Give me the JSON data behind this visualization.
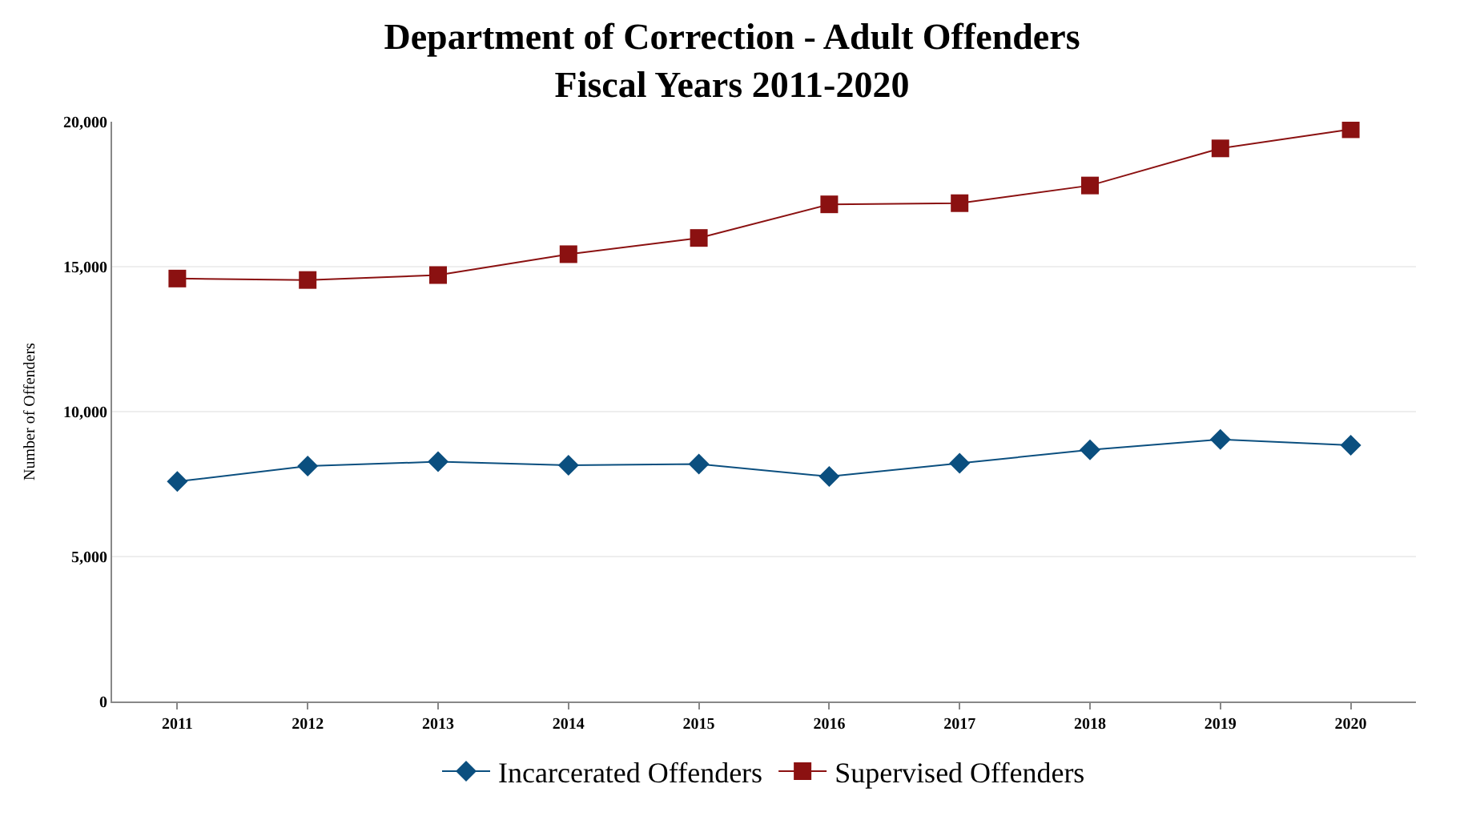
{
  "chart_data": {
    "type": "line",
    "title": "Department of Correction - Adult Offenders\nFiscal Years 2011-2020",
    "ylabel": "Number of Offenders",
    "categories": [
      "2011",
      "2012",
      "2013",
      "2014",
      "2015",
      "2016",
      "2017",
      "2018",
      "2019",
      "2020"
    ],
    "series": [
      {
        "name": "Incarcerated Offenders",
        "color": "#0b4f7f",
        "marker": "diamond",
        "values": [
          7590,
          8120,
          8270,
          8150,
          8190,
          7760,
          8220,
          8680,
          9040,
          8840
        ]
      },
      {
        "name": "Supervised Offenders",
        "color": "#8b1111",
        "marker": "square",
        "values": [
          14590,
          14540,
          14710,
          15430,
          15990,
          17150,
          17190,
          17800,
          19080,
          19740
        ]
      }
    ],
    "ylim": [
      0,
      20000
    ],
    "yticks": [
      {
        "value": 0,
        "label": "0"
      },
      {
        "value": 5000,
        "label": "5,000"
      },
      {
        "value": 10000,
        "label": "10,000"
      },
      {
        "value": 15000,
        "label": "15,000"
      },
      {
        "value": 20000,
        "label": "20,000"
      }
    ],
    "grid": "y",
    "legend": "bottom"
  }
}
